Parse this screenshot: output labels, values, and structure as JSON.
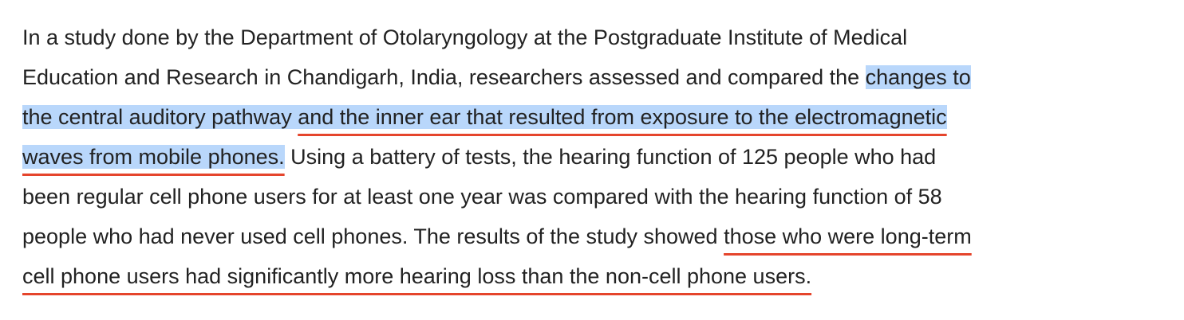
{
  "paragraph": {
    "lines": [
      [
        "In a study done by the Department of Otolaryngology at the Postgraduate Institute of Medical"
      ],
      [
        "Education and Research in Chandigarh, India, researchers assessed and compared the ",
        "changes to"
      ],
      [
        "the central auditory pathway ",
        "and the inner ear that resulted from exposure to the electromagnetic"
      ],
      [
        "waves from mobile phones.",
        " Using a battery of tests, the hearing function of 125 people who had"
      ],
      [
        "been regular cell phone users for at least one year was compared with the hearing function of 58"
      ],
      [
        "people who had never used cell phones. The results of the study showed ",
        "those who were long-term"
      ],
      [
        "cell phone users had significantly more hearing loss than the non-cell phone users."
      ]
    ]
  }
}
